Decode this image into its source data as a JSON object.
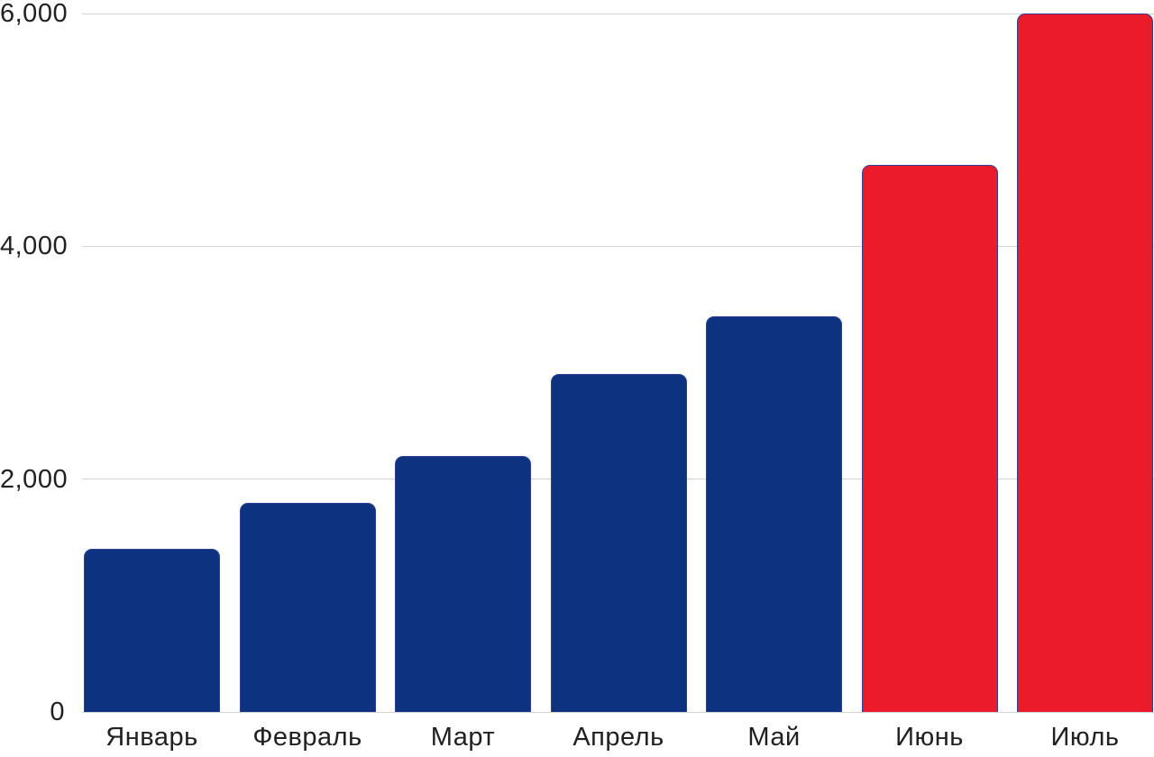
{
  "chart_data": {
    "type": "bar",
    "title": "",
    "xlabel": "",
    "ylabel": "",
    "categories": [
      "Январь",
      "Февраль",
      "Март",
      "Апрель",
      "Май",
      "Июнь",
      "Июль"
    ],
    "values": [
      1400,
      1800,
      2200,
      2900,
      3400,
      4700,
      6000
    ],
    "bar_colors": [
      "#0d3380",
      "#0d3380",
      "#0d3380",
      "#0d3380",
      "#0d3380",
      "#ec1b2b",
      "#ec1b2b"
    ],
    "highlighted_categories": [
      "Июнь",
      "Июль"
    ],
    "ylim": [
      0,
      6000
    ],
    "yticks": [
      {
        "value": 0,
        "label": "0"
      },
      {
        "value": 2000,
        "label": "2,000"
      },
      {
        "value": 4000,
        "label": "4,000"
      },
      {
        "value": 6000,
        "label": "6,000"
      }
    ],
    "grid": true,
    "legend": false,
    "colors": {
      "bar_primary": "#0d3380",
      "bar_highlight": "#ec1b2b",
      "bar_border": "#2e3f94",
      "gridline": "#d4d4d4",
      "axis_text": "#212121",
      "background": "#ffffff"
    }
  }
}
